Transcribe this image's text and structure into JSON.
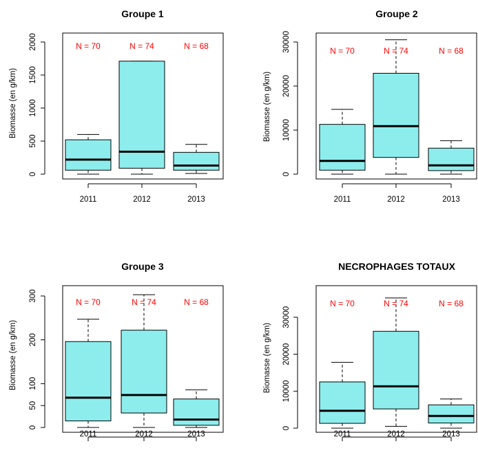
{
  "colors": {
    "box_fill": "#8deded",
    "n_label": "#ff0000",
    "axis": "#000000"
  },
  "chart_data": [
    {
      "type": "boxplot",
      "title": "Groupe 1",
      "xlabel": "",
      "ylabel": "Biomasse (en g/km)",
      "ylim": [
        0,
        2000
      ],
      "yticks": [
        0,
        500,
        1000,
        1500,
        2000
      ],
      "categories": [
        "2011",
        "2012",
        "2013"
      ],
      "n_labels": [
        "N = 70",
        "N = 74",
        "N = 68"
      ],
      "boxes": [
        {
          "whisker_low": 0,
          "q1": 60,
          "median": 220,
          "q3": 520,
          "whisker_high": 600
        },
        {
          "whisker_low": 0,
          "q1": 90,
          "median": 340,
          "q3": 1710,
          "whisker_high": 1710
        },
        {
          "whisker_low": 10,
          "q1": 60,
          "median": 130,
          "q3": 330,
          "whisker_high": 450
        }
      ]
    },
    {
      "type": "boxplot",
      "title": "Groupe 2",
      "xlabel": "",
      "ylabel": "Biomasse (en g/km)",
      "ylim": [
        0,
        30000
      ],
      "yticks": [
        0,
        10000,
        20000,
        30000
      ],
      "categories": [
        "2011",
        "2012",
        "2013"
      ],
      "n_labels": [
        "N = 70",
        "N = 74",
        "N = 68"
      ],
      "boxes": [
        {
          "whisker_low": 0,
          "q1": 900,
          "median": 3000,
          "q3": 11300,
          "whisker_high": 14700
        },
        {
          "whisker_low": 0,
          "q1": 3800,
          "median": 10900,
          "q3": 22900,
          "whisker_high": 30500
        },
        {
          "whisker_low": 0,
          "q1": 800,
          "median": 2000,
          "q3": 5900,
          "whisker_high": 7600
        }
      ]
    },
    {
      "type": "boxplot",
      "title": "Groupe 3",
      "xlabel": "",
      "ylabel": "Biomasse (en g/km)",
      "ylim": [
        0,
        300
      ],
      "yticks": [
        0,
        50,
        100,
        200,
        300
      ],
      "categories": [
        "2011",
        "2012",
        "2013"
      ],
      "n_labels": [
        "N = 70",
        "N = 74",
        "N = 68"
      ],
      "boxes": [
        {
          "whisker_low": 0,
          "q1": 15,
          "median": 68,
          "q3": 196,
          "whisker_high": 247
        },
        {
          "whisker_low": 0,
          "q1": 33,
          "median": 74,
          "q3": 222,
          "whisker_high": 303
        },
        {
          "whisker_low": 0,
          "q1": 5,
          "median": 18,
          "q3": 65,
          "whisker_high": 86
        }
      ]
    },
    {
      "type": "boxplot",
      "title": "NECROPHAGES TOTAUX",
      "xlabel": "",
      "ylabel": "Biomasse (en g/km)",
      "ylim": [
        0,
        35000
      ],
      "yticks": [
        0,
        10000,
        20000,
        30000
      ],
      "categories": [
        "2011",
        "2012",
        "2013"
      ],
      "n_labels": [
        "N = 70",
        "N = 74",
        "N = 68"
      ],
      "boxes": [
        {
          "whisker_low": 0,
          "q1": 1300,
          "median": 4700,
          "q3": 12500,
          "whisker_high": 17800
        },
        {
          "whisker_low": 500,
          "q1": 5200,
          "median": 11300,
          "q3": 26200,
          "whisker_high": 35200
        },
        {
          "whisker_low": 0,
          "q1": 1400,
          "median": 3300,
          "q3": 6300,
          "whisker_high": 7900
        }
      ]
    }
  ]
}
